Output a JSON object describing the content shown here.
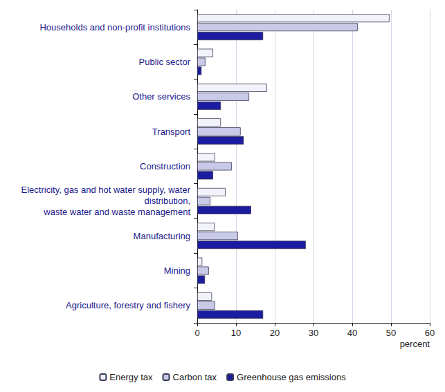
{
  "chart_data": {
    "type": "bar",
    "orientation": "horizontal",
    "grid": true,
    "legend": "bottom",
    "xlabel": "percent",
    "categories": [
      "Households and non-profit institutions",
      "Public sector",
      "Other services",
      "Transport",
      "Construction",
      "Electricity, gas and hot water supply, water\ndistribution,\nwaste water and waste management",
      "Manufacturing",
      "Mining",
      "Agriculture, forestry and fishery"
    ],
    "series": [
      {
        "name": "Energy tax",
        "color": "#f2f2fb",
        "values": [
          49.6,
          4.1,
          18.0,
          6.1,
          4.6,
          7.3,
          4.5,
          1.3,
          3.8
        ]
      },
      {
        "name": "Carbon tax",
        "color": "#c9c9e8",
        "values": [
          41.4,
          2.1,
          13.4,
          11.2,
          8.9,
          3.4,
          10.5,
          3.0,
          4.6
        ]
      },
      {
        "name": "Greenhouse gas emissions",
        "color": "#1c1ca0",
        "values": [
          17.0,
          1.1,
          6.1,
          12.0,
          4.1,
          13.9,
          28.0,
          2.0,
          17.0
        ]
      }
    ],
    "xlim": [
      0,
      60
    ],
    "xticks": [
      0,
      10,
      20,
      30,
      40,
      50,
      60
    ]
  }
}
